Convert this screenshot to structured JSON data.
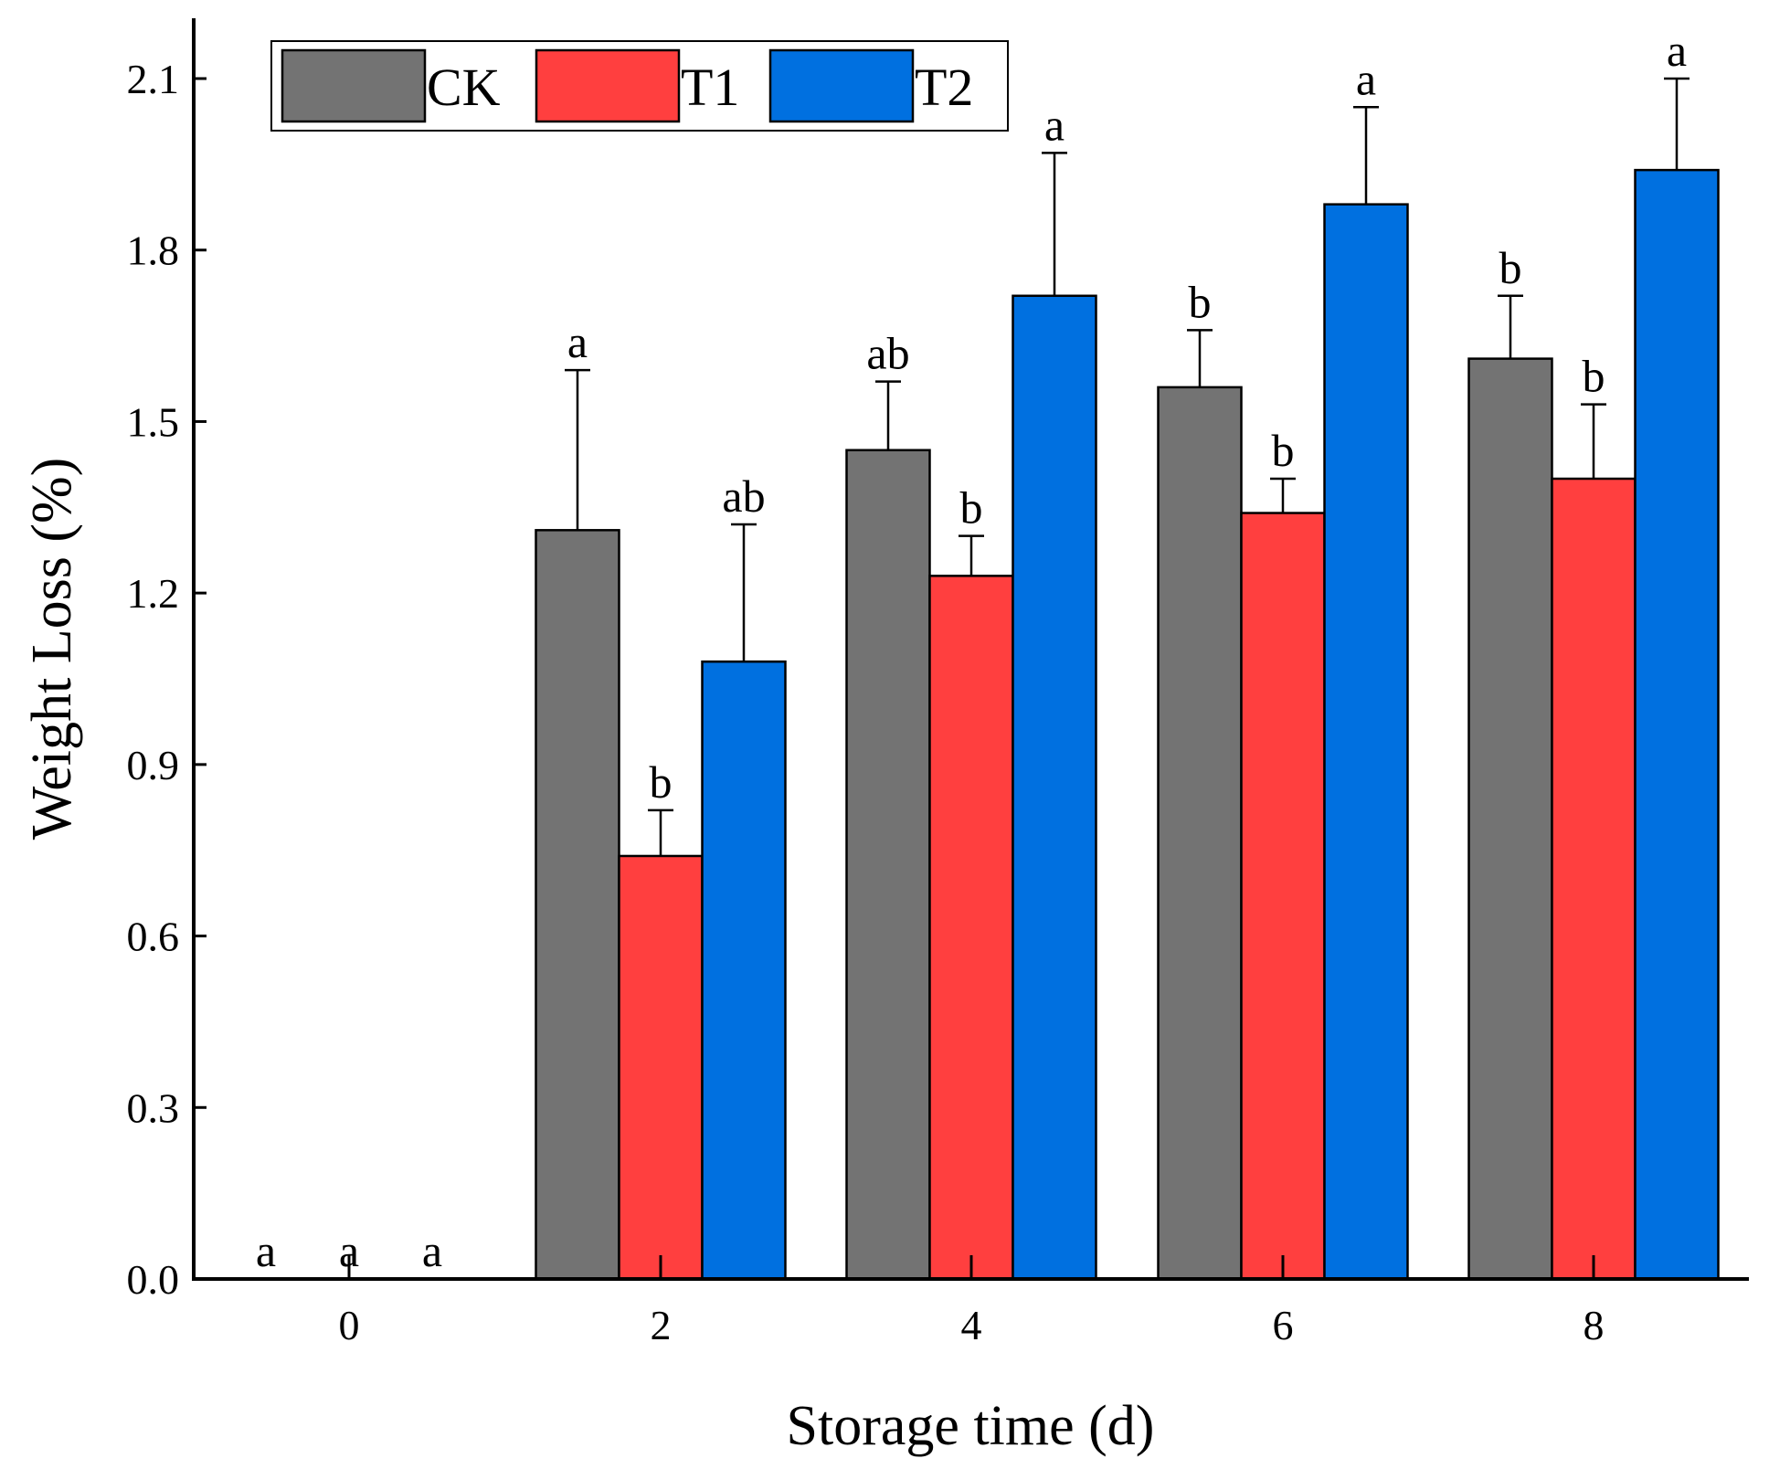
{
  "chart_data": {
    "type": "bar",
    "title": "",
    "xlabel": "Storage time (d)",
    "ylabel": "Weight Loss (%)",
    "categories": [
      "0",
      "2",
      "4",
      "6",
      "8"
    ],
    "ylim": [
      0,
      2.2
    ],
    "yticks": [
      "0.0",
      "0.3",
      "0.6",
      "0.9",
      "1.2",
      "1.5",
      "1.8",
      "2.1"
    ],
    "legend_position": "top-left",
    "error_bars": "upper",
    "series": [
      {
        "name": "CK",
        "color": "#737373",
        "values": [
          0,
          1.31,
          1.45,
          1.56,
          1.61
        ],
        "errors": [
          0,
          0.28,
          0.12,
          0.1,
          0.11
        ],
        "significance": [
          "a",
          "a",
          "ab",
          "b",
          "b"
        ]
      },
      {
        "name": "T1",
        "color": "#ff3f3f",
        "values": [
          0,
          0.74,
          1.23,
          1.34,
          1.4
        ],
        "errors": [
          0,
          0.08,
          0.07,
          0.06,
          0.13
        ],
        "significance": [
          "a",
          "b",
          "b",
          "b",
          "b"
        ]
      },
      {
        "name": "T2",
        "color": "#0070e0",
        "values": [
          0,
          1.08,
          1.72,
          1.88,
          1.94
        ],
        "errors": [
          0,
          0.24,
          0.25,
          0.17,
          0.16
        ],
        "significance": [
          "a",
          "ab",
          "a",
          "a",
          "a"
        ]
      }
    ]
  }
}
